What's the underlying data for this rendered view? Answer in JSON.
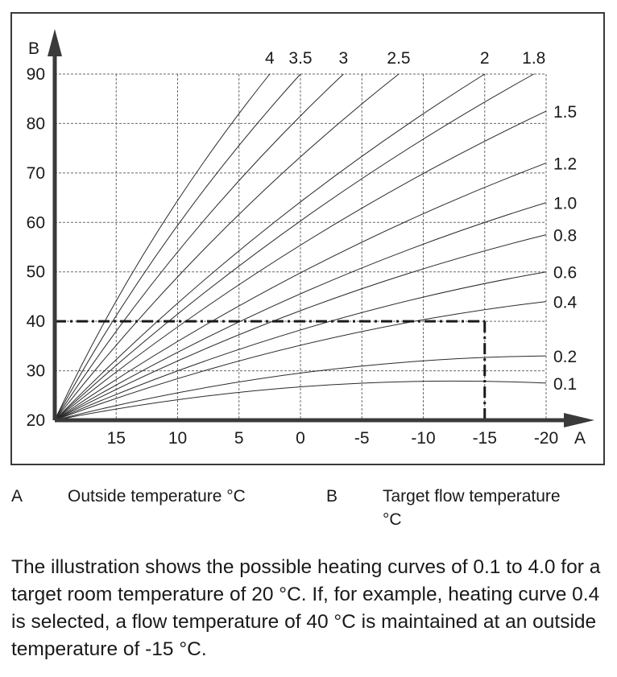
{
  "chart_data": {
    "type": "line",
    "xlabel": "A",
    "ylabel": "B",
    "xlim": [
      20,
      -20
    ],
    "ylim": [
      20,
      90
    ],
    "x_ticks": [
      15,
      10,
      5,
      0,
      -5,
      -10,
      -15,
      -20
    ],
    "y_ticks": [
      20,
      30,
      40,
      50,
      60,
      70,
      80,
      90
    ],
    "grid": true,
    "origin": {
      "x": 20,
      "y": 20
    },
    "series": [
      {
        "name": "0.1",
        "end": {
          "x": -20,
          "y": 27.5
        }
      },
      {
        "name": "0.2",
        "end": {
          "x": -20,
          "y": 33
        }
      },
      {
        "name": "0.4",
        "end": {
          "x": -20,
          "y": 44
        }
      },
      {
        "name": "0.6",
        "end": {
          "x": -20,
          "y": 50
        }
      },
      {
        "name": "0.8",
        "end": {
          "x": -20,
          "y": 57.5
        }
      },
      {
        "name": "1.0",
        "end": {
          "x": -20,
          "y": 64
        }
      },
      {
        "name": "1.2",
        "end": {
          "x": -20,
          "y": 72
        }
      },
      {
        "name": "1.5",
        "end": {
          "x": -20,
          "y": 82.5
        }
      },
      {
        "name": "1.8",
        "end": {
          "x": -19,
          "y": 90
        }
      },
      {
        "name": "2",
        "end": {
          "x": -15,
          "y": 90
        }
      },
      {
        "name": "2.5",
        "end": {
          "x": -8,
          "y": 90
        }
      },
      {
        "name": "3",
        "end": {
          "x": -3.5,
          "y": 90
        }
      },
      {
        "name": "3.5",
        "end": {
          "x": 0,
          "y": 90
        }
      },
      {
        "name": "4",
        "end": {
          "x": 2.5,
          "y": 90
        }
      }
    ],
    "top_labels": [
      "4",
      "3.5",
      "3",
      "2.5",
      "2",
      "1.8"
    ],
    "right_labels": [
      "1.5",
      "1.2",
      "1.0",
      "0.8",
      "0.6",
      "0.4",
      "0.2",
      "0.1"
    ],
    "example": {
      "curve": "0.4",
      "outside_temperature": -15,
      "flow_temperature": 40
    }
  },
  "legend": {
    "a_key": "A",
    "a_text": "Outside temperature °C",
    "b_key": "B",
    "b_text_line1": "Target flow temperature",
    "b_text_line2": "°C"
  },
  "description": "The illustration shows the possible heating curves of 0.1 to 4.0 for a target room temperature of 20 °C. If, for example, heating curve 0.4 is selected, a flow temperature of 40 °C is maintained at an outside temperature of -15 °C."
}
